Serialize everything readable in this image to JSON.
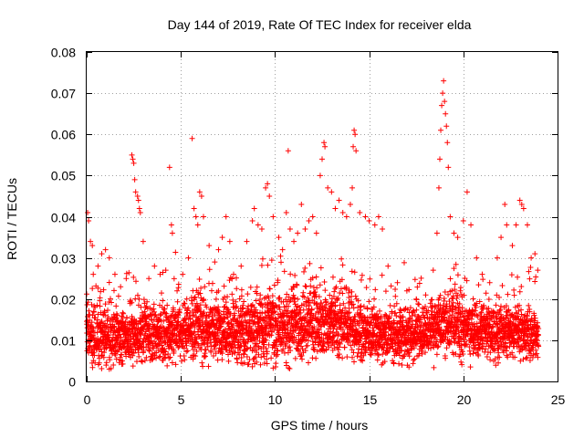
{
  "chart_data": {
    "type": "scatter",
    "title": "Day 144 of 2019, Rate Of TEC Index for receiver elda",
    "xlabel": "GPS time / hours",
    "ylabel": "ROTI / TECUs",
    "xlim": [
      0,
      25
    ],
    "ylim": [
      0,
      0.08
    ],
    "xticks": [
      0,
      5,
      10,
      15,
      20,
      25
    ],
    "yticks": [
      0,
      0.01,
      0.02,
      0.03,
      0.04,
      0.05,
      0.06,
      0.07,
      0.08
    ],
    "xtick_labels": [
      "0",
      "5",
      "10",
      "15",
      "20",
      "25"
    ],
    "ytick_labels": [
      "0",
      "0.01",
      "0.02",
      "0.03",
      "0.04",
      "0.05",
      "0.06",
      "0.07",
      "0.08"
    ],
    "grid": true,
    "marker": "+",
    "color": "#ff0000",
    "series": [
      {
        "name": "ROTI",
        "points": [
          [
            0.05,
            0.041
          ],
          [
            0.1,
            0.039
          ],
          [
            0.2,
            0.034
          ],
          [
            0.3,
            0.033
          ],
          [
            0.35,
            0.026
          ],
          [
            0.6,
            0.028
          ],
          [
            0.8,
            0.031
          ],
          [
            1.0,
            0.032
          ],
          [
            1.2,
            0.03
          ],
          [
            1.5,
            0.026
          ],
          [
            1.8,
            0.023
          ],
          [
            2.1,
            0.025
          ],
          [
            2.4,
            0.055
          ],
          [
            2.45,
            0.054
          ],
          [
            2.5,
            0.053
          ],
          [
            2.55,
            0.049
          ],
          [
            2.6,
            0.046
          ],
          [
            2.7,
            0.045
          ],
          [
            2.75,
            0.044
          ],
          [
            2.8,
            0.042
          ],
          [
            2.85,
            0.041
          ],
          [
            3.0,
            0.034
          ],
          [
            3.3,
            0.025
          ],
          [
            3.6,
            0.028
          ],
          [
            3.9,
            0.026
          ],
          [
            4.2,
            0.027
          ],
          [
            4.4,
            0.052
          ],
          [
            4.5,
            0.038
          ],
          [
            4.55,
            0.036
          ],
          [
            4.8,
            0.022
          ],
          [
            5.1,
            0.026
          ],
          [
            5.4,
            0.03
          ],
          [
            5.6,
            0.059
          ],
          [
            5.7,
            0.042
          ],
          [
            5.8,
            0.04
          ],
          [
            5.9,
            0.038
          ],
          [
            6.0,
            0.046
          ],
          [
            6.1,
            0.045
          ],
          [
            6.2,
            0.04
          ],
          [
            6.5,
            0.033
          ],
          [
            6.8,
            0.029
          ],
          [
            7.0,
            0.032
          ],
          [
            7.2,
            0.035
          ],
          [
            7.4,
            0.04
          ],
          [
            7.6,
            0.034
          ],
          [
            7.8,
            0.026
          ],
          [
            8.2,
            0.028
          ],
          [
            8.5,
            0.034
          ],
          [
            8.8,
            0.039
          ],
          [
            8.9,
            0.042
          ],
          [
            9.1,
            0.038
          ],
          [
            9.3,
            0.037
          ],
          [
            9.5,
            0.047
          ],
          [
            9.6,
            0.048
          ],
          [
            9.7,
            0.045
          ],
          [
            9.9,
            0.04
          ],
          [
            10.2,
            0.035
          ],
          [
            10.4,
            0.032
          ],
          [
            10.6,
            0.041
          ],
          [
            10.7,
            0.056
          ],
          [
            10.8,
            0.037
          ],
          [
            11.0,
            0.034
          ],
          [
            11.2,
            0.036
          ],
          [
            11.4,
            0.043
          ],
          [
            11.6,
            0.037
          ],
          [
            11.8,
            0.039
          ],
          [
            12.0,
            0.04
          ],
          [
            12.2,
            0.036
          ],
          [
            12.4,
            0.05
          ],
          [
            12.5,
            0.054
          ],
          [
            12.6,
            0.058
          ],
          [
            12.65,
            0.057
          ],
          [
            12.8,
            0.047
          ],
          [
            13.0,
            0.046
          ],
          [
            13.2,
            0.042
          ],
          [
            13.4,
            0.044
          ],
          [
            13.6,
            0.041
          ],
          [
            13.8,
            0.04
          ],
          [
            14.0,
            0.043
          ],
          [
            14.1,
            0.047
          ],
          [
            14.15,
            0.057
          ],
          [
            14.2,
            0.061
          ],
          [
            14.25,
            0.06
          ],
          [
            14.3,
            0.056
          ],
          [
            14.5,
            0.041
          ],
          [
            14.8,
            0.04
          ],
          [
            15.0,
            0.039
          ],
          [
            15.3,
            0.038
          ],
          [
            15.5,
            0.04
          ],
          [
            15.7,
            0.037
          ],
          [
            16.0,
            0.028
          ],
          [
            16.5,
            0.024
          ],
          [
            17.0,
            0.022
          ],
          [
            17.5,
            0.02
          ],
          [
            18.0,
            0.021
          ],
          [
            18.4,
            0.027
          ],
          [
            18.6,
            0.036
          ],
          [
            18.7,
            0.047
          ],
          [
            18.75,
            0.054
          ],
          [
            18.8,
            0.061
          ],
          [
            18.85,
            0.067
          ],
          [
            18.9,
            0.07
          ],
          [
            18.95,
            0.073
          ],
          [
            19.0,
            0.068
          ],
          [
            19.05,
            0.065
          ],
          [
            19.1,
            0.062
          ],
          [
            19.15,
            0.058
          ],
          [
            19.2,
            0.052
          ],
          [
            19.3,
            0.04
          ],
          [
            19.5,
            0.036
          ],
          [
            19.7,
            0.035
          ],
          [
            20.0,
            0.039
          ],
          [
            20.2,
            0.046
          ],
          [
            20.4,
            0.038
          ],
          [
            20.7,
            0.03
          ],
          [
            21.0,
            0.026
          ],
          [
            21.4,
            0.024
          ],
          [
            21.8,
            0.03
          ],
          [
            22.0,
            0.035
          ],
          [
            22.2,
            0.043
          ],
          [
            22.3,
            0.038
          ],
          [
            22.6,
            0.033
          ],
          [
            22.8,
            0.038
          ],
          [
            23.0,
            0.044
          ],
          [
            23.1,
            0.043
          ],
          [
            23.2,
            0.042
          ],
          [
            23.4,
            0.038
          ],
          [
            23.6,
            0.03
          ],
          [
            23.8,
            0.031
          ],
          [
            23.95,
            0.027
          ]
        ],
        "density_profile": [
          [
            0.0,
            0.011,
            0.004
          ],
          [
            1.0,
            0.011,
            0.004
          ],
          [
            2.0,
            0.011,
            0.004
          ],
          [
            3.0,
            0.012,
            0.004
          ],
          [
            4.0,
            0.011,
            0.004
          ],
          [
            5.0,
            0.012,
            0.004
          ],
          [
            6.0,
            0.013,
            0.005
          ],
          [
            7.0,
            0.012,
            0.004
          ],
          [
            8.0,
            0.012,
            0.004
          ],
          [
            9.0,
            0.013,
            0.005
          ],
          [
            10.0,
            0.013,
            0.005
          ],
          [
            11.0,
            0.013,
            0.005
          ],
          [
            12.0,
            0.014,
            0.005
          ],
          [
            13.0,
            0.014,
            0.005
          ],
          [
            14.0,
            0.013,
            0.005
          ],
          [
            15.0,
            0.012,
            0.004
          ],
          [
            16.0,
            0.011,
            0.004
          ],
          [
            17.0,
            0.011,
            0.004
          ],
          [
            18.0,
            0.012,
            0.004
          ],
          [
            19.0,
            0.014,
            0.005
          ],
          [
            20.0,
            0.013,
            0.005
          ],
          [
            21.0,
            0.012,
            0.004
          ],
          [
            22.0,
            0.012,
            0.004
          ],
          [
            23.0,
            0.012,
            0.004
          ],
          [
            24.0,
            0.011,
            0.004
          ]
        ]
      }
    ]
  }
}
